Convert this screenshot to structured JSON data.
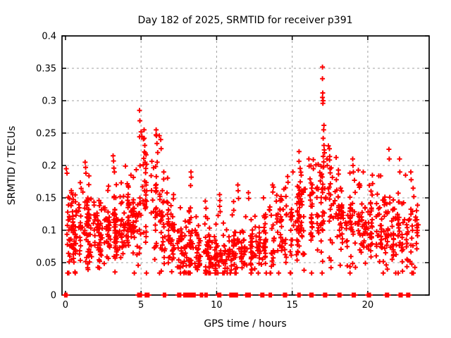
{
  "figure": {
    "background": "#ffffff",
    "text_color": "#000000",
    "border_color": "#000000"
  },
  "chart_data": {
    "type": "scatter",
    "title": "Day 182 of 2025, SRMTID for receiver p391",
    "xlabel": "GPS time / hours",
    "ylabel": "SRMTID / TECUs",
    "xlim": [
      -0.23,
      24.06
    ],
    "ylim": [
      0,
      0.4
    ],
    "xticks": {
      "values": [
        0,
        5,
        10,
        15,
        20
      ],
      "labels": [
        "0",
        "5",
        "10",
        "15",
        "20"
      ]
    },
    "yticks": {
      "values": [
        0,
        0.05,
        0.1,
        0.15,
        0.2,
        0.25,
        0.3,
        0.35,
        0.4
      ],
      "labels": [
        "0",
        "0.05",
        "0.1",
        "0.15",
        "0.2",
        "0.25",
        "0.3",
        "0.35",
        "0.4"
      ]
    },
    "grid": {
      "visible": true,
      "style": "dashed",
      "color": "#a0a0a0",
      "x_gridlines": [
        5,
        10,
        15,
        20
      ],
      "y_gridlines": [
        0.05,
        0.1,
        0.15,
        0.2,
        0.25,
        0.3,
        0.35
      ]
    },
    "legend": "none",
    "marker": {
      "shape": "plus",
      "color": "#ff0000",
      "size": 7,
      "stroke_width": 2
    },
    "seed": 1820,
    "cloud_bins_format": [
      "hour_start",
      "hour_end",
      "count",
      "mean_tecu",
      "sd_tecu"
    ],
    "cloud_bins": [
      [
        0,
        0.5,
        40,
        0.105,
        0.032
      ],
      [
        0.5,
        1,
        42,
        0.1,
        0.03
      ],
      [
        1,
        1.5,
        40,
        0.105,
        0.035
      ],
      [
        1.5,
        2,
        38,
        0.1,
        0.03
      ],
      [
        2,
        2.5,
        36,
        0.095,
        0.028
      ],
      [
        2.5,
        3,
        36,
        0.1,
        0.03
      ],
      [
        3,
        3.5,
        38,
        0.11,
        0.034
      ],
      [
        3.5,
        4,
        38,
        0.115,
        0.03
      ],
      [
        4,
        4.5,
        38,
        0.115,
        0.03
      ],
      [
        4.5,
        5,
        34,
        0.12,
        0.036
      ],
      [
        5,
        5.5,
        32,
        0.14,
        0.05
      ],
      [
        5.5,
        6,
        28,
        0.13,
        0.045
      ],
      [
        6,
        6.5,
        28,
        0.12,
        0.045
      ],
      [
        6.5,
        7,
        28,
        0.095,
        0.035
      ],
      [
        7,
        7.5,
        32,
        0.08,
        0.025
      ],
      [
        7.5,
        8,
        32,
        0.072,
        0.024
      ],
      [
        8,
        8.5,
        32,
        0.078,
        0.032
      ],
      [
        8.5,
        9,
        28,
        0.065,
        0.02
      ],
      [
        9,
        9.5,
        28,
        0.065,
        0.026
      ],
      [
        9.5,
        10,
        28,
        0.055,
        0.015
      ],
      [
        10,
        10.5,
        28,
        0.068,
        0.028
      ],
      [
        10.5,
        11,
        28,
        0.06,
        0.018
      ],
      [
        11,
        11.5,
        28,
        0.078,
        0.034
      ],
      [
        11.5,
        12,
        28,
        0.065,
        0.02
      ],
      [
        12,
        12.5,
        28,
        0.07,
        0.026
      ],
      [
        12.5,
        13,
        26,
        0.07,
        0.02
      ],
      [
        13,
        13.5,
        26,
        0.08,
        0.025
      ],
      [
        13.5,
        14,
        26,
        0.09,
        0.033
      ],
      [
        14,
        14.5,
        28,
        0.1,
        0.035
      ],
      [
        14.5,
        15,
        28,
        0.11,
        0.035
      ],
      [
        15,
        15.5,
        30,
        0.115,
        0.038
      ],
      [
        15.5,
        16,
        30,
        0.12,
        0.04
      ],
      [
        16,
        16.5,
        30,
        0.13,
        0.04
      ],
      [
        16.5,
        17,
        28,
        0.13,
        0.044
      ],
      [
        17,
        17.5,
        28,
        0.155,
        0.048
      ],
      [
        17.5,
        18,
        28,
        0.13,
        0.04
      ],
      [
        18,
        18.5,
        28,
        0.11,
        0.03
      ],
      [
        18.5,
        19,
        28,
        0.11,
        0.034
      ],
      [
        19,
        19.5,
        28,
        0.12,
        0.038
      ],
      [
        19.5,
        20,
        28,
        0.1,
        0.03
      ],
      [
        20,
        20.5,
        30,
        0.105,
        0.03
      ],
      [
        20.5,
        21,
        30,
        0.1,
        0.03
      ],
      [
        21,
        21.5,
        28,
        0.1,
        0.034
      ],
      [
        21.5,
        22,
        28,
        0.09,
        0.03
      ],
      [
        22,
        22.5,
        28,
        0.1,
        0.038
      ],
      [
        22.5,
        23,
        26,
        0.095,
        0.034
      ],
      [
        23,
        23.35,
        14,
        0.1,
        0.03
      ]
    ],
    "outliers": [
      [
        0.05,
        0.195
      ],
      [
        0.1,
        0.188
      ],
      [
        1.3,
        0.205
      ],
      [
        1.33,
        0.197
      ],
      [
        1.35,
        0.188
      ],
      [
        3.15,
        0.215
      ],
      [
        3.18,
        0.207
      ],
      [
        3.2,
        0.196
      ],
      [
        4.9,
        0.285
      ],
      [
        4.92,
        0.269
      ],
      [
        5.0,
        0.252
      ],
      [
        5.05,
        0.245
      ],
      [
        5.2,
        0.255
      ],
      [
        5.21,
        0.242
      ],
      [
        5.25,
        0.231
      ],
      [
        5.22,
        0.221
      ],
      [
        5.18,
        0.211
      ],
      [
        5.15,
        0.201
      ],
      [
        6.0,
        0.255
      ],
      [
        6.02,
        0.246
      ],
      [
        6.05,
        0.234
      ],
      [
        6.1,
        0.22
      ],
      [
        6.3,
        0.24
      ],
      [
        6.33,
        0.226
      ],
      [
        6.07,
        0.205
      ],
      [
        6.5,
        0.19
      ],
      [
        7.15,
        0.155
      ],
      [
        8.3,
        0.19
      ],
      [
        8.32,
        0.182
      ],
      [
        8.28,
        0.169
      ],
      [
        9.25,
        0.145
      ],
      [
        9.3,
        0.134
      ],
      [
        10.2,
        0.155
      ],
      [
        10.22,
        0.146
      ],
      [
        10.2,
        0.137
      ],
      [
        11.4,
        0.17
      ],
      [
        11.42,
        0.161
      ],
      [
        11.45,
        0.149
      ],
      [
        12.1,
        0.158
      ],
      [
        12.12,
        0.149
      ],
      [
        13.1,
        0.15
      ],
      [
        13.7,
        0.17
      ],
      [
        13.72,
        0.159
      ],
      [
        14.7,
        0.183
      ],
      [
        14.72,
        0.174
      ],
      [
        15.05,
        0.19
      ],
      [
        15.6,
        0.185
      ],
      [
        16.1,
        0.21
      ],
      [
        16.12,
        0.199
      ],
      [
        16.4,
        0.195
      ],
      [
        17.0,
        0.352
      ],
      [
        17.0,
        0.334
      ],
      [
        17.02,
        0.312
      ],
      [
        17.0,
        0.305
      ],
      [
        17.05,
        0.3
      ],
      [
        17.03,
        0.296
      ],
      [
        17.1,
        0.262
      ],
      [
        17.08,
        0.255
      ],
      [
        17.05,
        0.242
      ],
      [
        17.1,
        0.231
      ],
      [
        17.12,
        0.224
      ],
      [
        17.05,
        0.214
      ],
      [
        17.3,
        0.21
      ],
      [
        17.32,
        0.2
      ],
      [
        17.5,
        0.195
      ],
      [
        18.2,
        0.165
      ],
      [
        19.0,
        0.21
      ],
      [
        19.02,
        0.2
      ],
      [
        19.05,
        0.19
      ],
      [
        19.7,
        0.19
      ],
      [
        19.4,
        0.17
      ],
      [
        20.3,
        0.185
      ],
      [
        20.32,
        0.172
      ],
      [
        21.4,
        0.225
      ],
      [
        21.42,
        0.21
      ],
      [
        22.1,
        0.21
      ],
      [
        22.12,
        0.19
      ],
      [
        22.5,
        0.185
      ],
      [
        22.85,
        0.19
      ],
      [
        22.87,
        0.178
      ],
      [
        23.0,
        0.165
      ],
      [
        23.05,
        0.152
      ]
    ],
    "zero_marks_hours": [
      0.02,
      4.85,
      4.95,
      5.35,
      5.45,
      6.55,
      7.5,
      7.55,
      7.9,
      7.95,
      8.05,
      8.1,
      8.2,
      8.3,
      8.5,
      9.0,
      9.3,
      10.15,
      10.2,
      10.95,
      11.0,
      11.1,
      11.3,
      12.0,
      12.05,
      12.15,
      13.0,
      13.05,
      13.55,
      14.5,
      14.55,
      15.45,
      16.25,
      16.3,
      17.15,
      17.2,
      18.1,
      18.15,
      19.05,
      19.1,
      20.05,
      20.1,
      21.25,
      21.3,
      22.15,
      22.2,
      22.65,
      22.7
    ]
  }
}
